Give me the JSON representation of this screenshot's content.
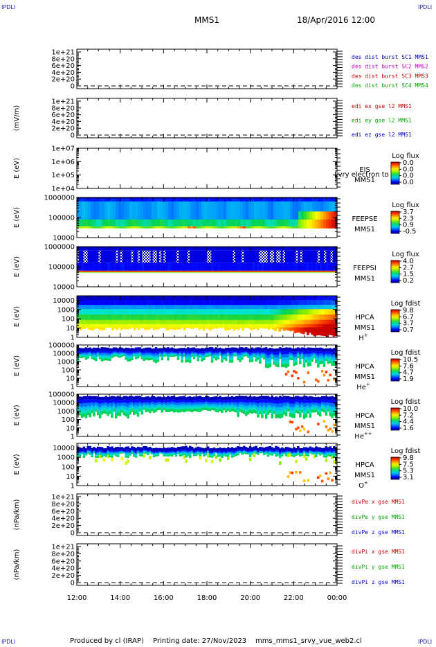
{
  "header": {
    "corner_label": "IPDLI",
    "spacecraft": "MMS1",
    "datetime": "18/Apr/2016 12:00"
  },
  "footer": {
    "produced_by": "Produced by cl (IRAP)",
    "printing_date": "Printing date: 27/Nov/2023",
    "script": "mms_mms1_srvy_vue_web2.cl"
  },
  "x_axis": {
    "tick_labels": [
      "12:00",
      "14:00",
      "16:00",
      "18:00",
      "20:00",
      "22:00",
      "00:00"
    ],
    "range_hours": [
      12,
      24
    ]
  },
  "chart_data": [
    {
      "id": "des-dist",
      "type": "line",
      "ylabel": "",
      "y_ticks": [
        "0",
        "2e+20",
        "4e+20",
        "6e+20",
        "8e+20",
        "1e+21"
      ],
      "ylim": [
        0,
        1e+21
      ],
      "zero_dashed": true,
      "legend": [
        {
          "text": "des dist burst SC1 MMS1",
          "color": "#0000cc"
        },
        {
          "text": "des dist burst SC2 MMS2",
          "color": "#cc00cc"
        },
        {
          "text": "des dist burst SC3 MMS3",
          "color": "#cc0000"
        },
        {
          "text": "des dist burst SC4 MMS4",
          "color": "#00aa00"
        }
      ],
      "series": []
    },
    {
      "id": "edi-e",
      "type": "line",
      "ylabel": "(mV/m)",
      "y_ticks": [
        "0",
        "2e+20",
        "4e+20",
        "6e+20",
        "8e+20",
        "1e+21"
      ],
      "ylim": [
        0,
        1e+21
      ],
      "zero_dashed": true,
      "legend": [
        {
          "text": "edi ex gse l2 MMS1",
          "color": "#cc0000"
        },
        {
          "text": "edi ey gse l2 MMS1",
          "color": "#00aa00"
        },
        {
          "text": "edi ez gse l2 MMS1",
          "color": "#0000cc"
        }
      ],
      "series": []
    },
    {
      "id": "eis",
      "type": "heatmap",
      "ylabel": "E (eV)",
      "y_ticks": [
        "1e+04",
        "1e+05",
        "1e+06",
        "1e+07"
      ],
      "y_scale": "log",
      "ylim": [
        10000,
        10000000
      ],
      "side_labels": [
        "EIS",
        "MMS1"
      ],
      "overlay_text": "Lvry electron to",
      "colorbar": {
        "title": "Log flux",
        "ticks": [
          "0.0",
          "0.0",
          "0.0",
          "0.0"
        ]
      },
      "fill": "none"
    },
    {
      "id": "feepse",
      "type": "heatmap",
      "ylabel": "E (eV)",
      "y_ticks": [
        "10000",
        "100000",
        "1000000"
      ],
      "y_scale": "log",
      "ylim": [
        10000,
        1000000
      ],
      "side_labels": [
        "FEEPSE",
        "MMS1"
      ],
      "colorbar": {
        "title": "Log flux",
        "ticks": [
          "3.7",
          "2.3",
          "0.9",
          "-0.5"
        ]
      },
      "fill": "feepse"
    },
    {
      "id": "feepsi",
      "type": "heatmap",
      "ylabel": "E (eV)",
      "y_ticks": [
        "10000",
        "100000",
        "1000000"
      ],
      "y_scale": "log",
      "ylim": [
        10000,
        1000000
      ],
      "side_labels": [
        "FEEPSI",
        "MMS1"
      ],
      "colorbar": {
        "title": "Log flux",
        "ticks": [
          "4.0",
          "2.7",
          "1.5",
          "0.2"
        ]
      },
      "fill": "feepsi"
    },
    {
      "id": "hpca-h",
      "type": "heatmap",
      "ylabel": "E (eV)",
      "y_ticks": [
        "1",
        "10",
        "100",
        "1000",
        "10000"
      ],
      "y_scale": "log",
      "ylim": [
        1,
        30000
      ],
      "side_labels": [
        "HPCA",
        "MMS1"
      ],
      "species": {
        "base": "H",
        "sup": "+"
      },
      "colorbar": {
        "title": "Log fdist",
        "ticks": [
          "9.8",
          "6.7",
          "3.7",
          "0.7"
        ]
      },
      "fill": "hpca-h"
    },
    {
      "id": "hpca-he",
      "type": "heatmap",
      "ylabel": "E (eV)",
      "y_ticks": [
        "1",
        "10",
        "100",
        "1000",
        "10000",
        "100000"
      ],
      "y_scale": "log",
      "ylim": [
        1,
        100000
      ],
      "side_labels": [
        "HPCA",
        "MMS1"
      ],
      "species": {
        "base": "He",
        "sup": "+"
      },
      "colorbar": {
        "title": "Log fdist",
        "ticks": [
          "10.5",
          "7.6",
          "4.7",
          "1.9"
        ]
      },
      "fill": "hpca-he"
    },
    {
      "id": "hpca-hepp",
      "type": "heatmap",
      "ylabel": "E (eV)",
      "y_ticks": [
        "1",
        "10",
        "100",
        "1000",
        "10000",
        "100000"
      ],
      "y_scale": "log",
      "ylim": [
        1,
        100000
      ],
      "side_labels": [
        "HPCA",
        "MMS1"
      ],
      "species": {
        "base": "He",
        "sup": "++"
      },
      "colorbar": {
        "title": "Log fdist",
        "ticks": [
          "10.0",
          "7.2",
          "4.4",
          "1.6"
        ]
      },
      "fill": "hpca-hepp"
    },
    {
      "id": "hpca-o",
      "type": "heatmap",
      "ylabel": "E (eV)",
      "y_ticks": [
        "1",
        "10",
        "100",
        "1000",
        "10000"
      ],
      "y_scale": "log",
      "ylim": [
        1,
        30000
      ],
      "side_labels": [
        "HPCA",
        "MMS1"
      ],
      "species": {
        "base": "O",
        "sup": "+"
      },
      "colorbar": {
        "title": "Log fdist",
        "ticks": [
          "9.8",
          "7.5",
          "5.3",
          "3.1"
        ]
      },
      "fill": "hpca-o"
    },
    {
      "id": "divpe",
      "type": "line",
      "ylabel": "(nPa/km)",
      "y_ticks": [
        "0",
        "2e+20",
        "4e+20",
        "6e+20",
        "8e+20",
        "1e+21"
      ],
      "ylim": [
        0,
        1e+21
      ],
      "zero_dashed": true,
      "legend": [
        {
          "text": "divPe x gse MMS1",
          "color": "#cc0000"
        },
        {
          "text": "divPe y gse MMS1",
          "color": "#00aa00"
        },
        {
          "text": "divPe z gse MMS1",
          "color": "#0000cc"
        }
      ],
      "series": []
    },
    {
      "id": "divpi",
      "type": "line",
      "ylabel": "(nPa/km)",
      "y_ticks": [
        "0",
        "2e+20",
        "4e+20",
        "6e+20",
        "8e+20",
        "1e+21"
      ],
      "ylim": [
        0,
        1e+21
      ],
      "zero_dashed": true,
      "legend": [
        {
          "text": "divPi x gse MMS1",
          "color": "#cc0000"
        },
        {
          "text": "divPi y gse MMS1",
          "color": "#00aa00"
        },
        {
          "text": "divPi z gse MMS1",
          "color": "#0000cc"
        }
      ],
      "series": []
    }
  ]
}
